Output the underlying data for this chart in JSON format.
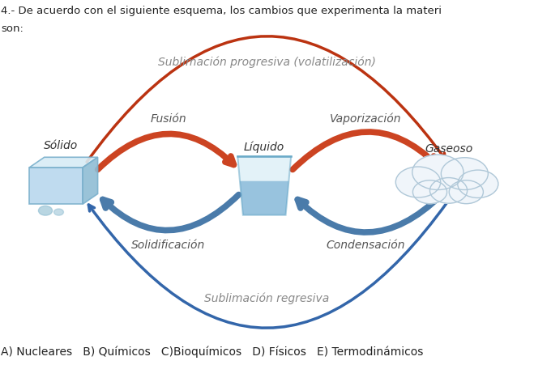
{
  "title_line1": "4.- De acuerdo con el siguiente esquema, los cambios que experimenta la materi",
  "title_line2": "son:",
  "sublimacion_progresiva": "Sublimación progresiva (volatilización)",
  "sublimacion_regresiva": "Sublimación regresiva",
  "fusion_label": "Fusión",
  "vaporizacion_label": "Vaporización",
  "solidificacion_label": "Solidificación",
  "condensacion_label": "Condensación",
  "solido_label": "Sólido",
  "liquido_label": "Líquido",
  "gaseoso_label": "Gaseoso",
  "answer_line": "A) Nucleares   B) Químicos   C)Bioquímicos   D) Físicos   E) Termodinámicos",
  "bg_color": "#ffffff",
  "text_color": "#222222",
  "arrow_top_color": "#cc4422",
  "arrow_bottom_color": "#4a7baa",
  "sublim_top_color": "#bb3311",
  "sublim_bottom_color": "#3366aa",
  "label_color": "#555555",
  "sublim_label_color": "#888888"
}
